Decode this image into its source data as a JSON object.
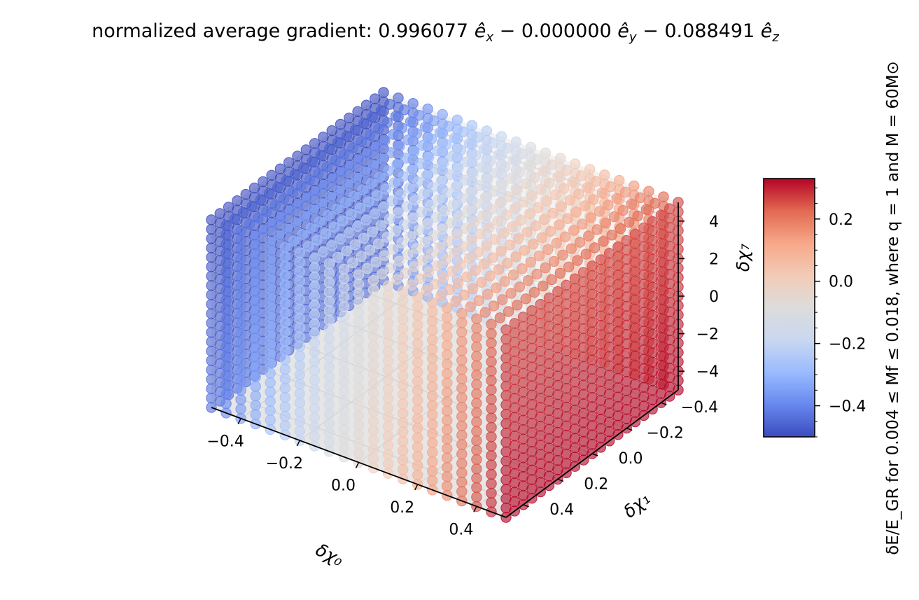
{
  "chart_data": {
    "type": "scatter",
    "subtype": "3d-scatter-cube",
    "title": "normalized average gradient: 0.996077 ê_x − 0.000000 ê_y − 0.088491 ê_z",
    "title_parts": {
      "prefix": "normalized average gradient: ",
      "cx": "0.996077",
      "cy": "0.000000",
      "cz": "0.088491",
      "ex": "ê",
      "ey": "ê",
      "ez": "ê",
      "sub_x": "x",
      "sub_y": "y",
      "sub_z": "z",
      "minus": "−"
    },
    "x_axis": {
      "label": "δχ₀",
      "range": [
        -0.5,
        0.5
      ],
      "ticks": [
        -0.4,
        -0.2,
        0.0,
        0.2,
        0.4
      ],
      "tick_labels": [
        "−0.4",
        "−0.2",
        "0.0",
        "0.2",
        "0.4"
      ]
    },
    "y_axis": {
      "label": "δχ₁",
      "range": [
        -0.5,
        0.5
      ],
      "ticks": [
        -0.4,
        -0.2,
        0.0,
        0.2,
        0.4
      ],
      "tick_labels": [
        "−0.4",
        "−0.2",
        "0.0",
        "0.2",
        "0.4"
      ]
    },
    "z_axis": {
      "label": "δχ₇",
      "range": [
        -5,
        5
      ],
      "ticks": [
        -4,
        -2,
        0,
        2,
        4
      ],
      "tick_labels": [
        "−4",
        "−2",
        "0",
        "2",
        "4"
      ]
    },
    "grid": {
      "x_values": [
        -0.5,
        -0.45,
        -0.4,
        -0.35,
        -0.3,
        -0.25,
        -0.2,
        -0.15,
        -0.1,
        -0.05,
        0.0,
        0.05,
        0.1,
        0.15,
        0.2,
        0.25,
        0.3,
        0.35,
        0.4,
        0.45,
        0.5
      ],
      "y_values": [
        -0.5,
        -0.45,
        -0.4,
        -0.35,
        -0.3,
        -0.25,
        -0.2,
        -0.15,
        -0.1,
        -0.05,
        0.0,
        0.05,
        0.1,
        0.15,
        0.2,
        0.25,
        0.3,
        0.35,
        0.4,
        0.45,
        0.5
      ],
      "z_values": [
        -5.0,
        -4.5,
        -4.0,
        -3.5,
        -3.0,
        -2.5,
        -2.0,
        -1.5,
        -1.0,
        -0.5,
        0.0,
        0.5,
        1.0,
        1.5,
        2.0,
        2.5,
        3.0,
        3.5,
        4.0,
        4.5,
        5.0
      ]
    },
    "color_model": {
      "description_source": "normalized average gradient",
      "gradient": [
        0.996077,
        0.0,
        -0.088491
      ],
      "value_at_min_x": -0.5,
      "value_at_max_x": 0.33
    },
    "colorbar": {
      "label": "δE/E_GR for 0.004 ≤ Mf ≤ 0.018, where q = 1 and M = 60M⊙",
      "range": [
        -0.5,
        0.33
      ],
      "ticks": [
        -0.4,
        -0.2,
        0.0,
        0.2
      ],
      "tick_labels": [
        "−0.4",
        "−0.2",
        "0.0",
        "0.2"
      ],
      "colormap": "coolwarm",
      "colormap_stops": [
        "#3b4cc0",
        "#6788ee",
        "#9abbff",
        "#c9d7f0",
        "#dddcdc",
        "#f2cbb7",
        "#f7a889",
        "#e26952",
        "#b40426"
      ]
    },
    "legend": "none",
    "grid_lines": true
  }
}
